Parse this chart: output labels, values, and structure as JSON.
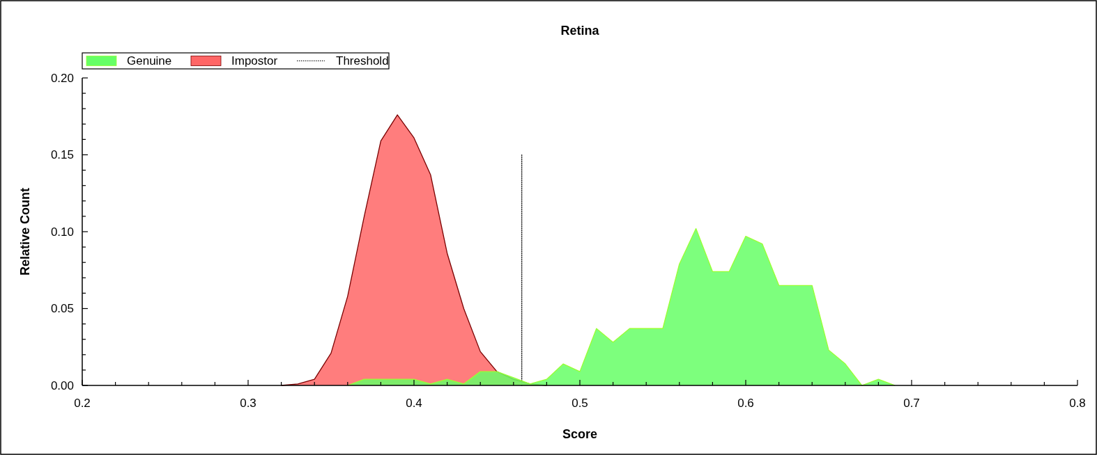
{
  "chart_data": {
    "type": "area",
    "title": "Retina",
    "xlabel": "Score",
    "ylabel": "Relative Count",
    "xlim": [
      0.2,
      0.8
    ],
    "xticks": [
      0.2,
      {
        "value": 0.22,
        "label": null
      },
      {
        "value": 0.24,
        "label": null
      },
      {
        "value": 0.26,
        "label": null
      },
      {
        "value": 0.28,
        "label": null
      },
      0.3,
      {
        "value": 0.32,
        "label": null
      },
      {
        "value": 0.34,
        "label": null
      },
      {
        "value": 0.36,
        "label": null
      },
      {
        "value": 0.38,
        "label": null
      },
      0.4,
      {
        "value": 0.42,
        "label": null
      },
      {
        "value": 0.44,
        "label": null
      },
      {
        "value": 0.46,
        "label": null
      },
      {
        "value": 0.48,
        "label": null
      },
      0.5,
      {
        "value": 0.52,
        "label": null
      },
      {
        "value": 0.54,
        "label": null
      },
      {
        "value": 0.56,
        "label": null
      },
      {
        "value": 0.58,
        "label": null
      },
      0.6,
      {
        "value": 0.62,
        "label": null
      },
      {
        "value": 0.64,
        "label": null
      },
      {
        "value": 0.66,
        "label": null
      },
      {
        "value": 0.68,
        "label": null
      },
      0.7,
      {
        "value": 0.72,
        "label": null
      },
      {
        "value": 0.74,
        "label": null
      },
      {
        "value": 0.76,
        "label": null
      },
      {
        "value": 0.78,
        "label": null
      },
      0.8
    ],
    "ylim": [
      0,
      0.2
    ],
    "yticks": [
      {
        "value": 0,
        "label": "0.00"
      },
      {
        "value": 0.01,
        "label": null
      },
      {
        "value": 0.02,
        "label": null
      },
      {
        "value": 0.03,
        "label": null
      },
      {
        "value": 0.04,
        "label": null
      },
      {
        "value": 0.05,
        "label": "0.05"
      },
      {
        "value": 0.06,
        "label": null
      },
      {
        "value": 0.07,
        "label": null
      },
      {
        "value": 0.08,
        "label": null
      },
      {
        "value": 0.09,
        "label": null
      },
      {
        "value": 0.1,
        "label": "0.10"
      },
      {
        "value": 0.11,
        "label": null
      },
      {
        "value": 0.12,
        "label": null
      },
      {
        "value": 0.13,
        "label": null
      },
      {
        "value": 0.14,
        "label": null
      },
      {
        "value": 0.15,
        "label": "0.15"
      },
      {
        "value": 0.16,
        "label": null
      },
      {
        "value": 0.17,
        "label": null
      },
      {
        "value": 0.18,
        "label": null
      },
      {
        "value": 0.19,
        "label": null
      },
      {
        "value": 0.2,
        "label": "0.20"
      }
    ],
    "grid": false,
    "legend": "top left",
    "marker": "none",
    "series": [
      {
        "name": "Genuine",
        "color": "#66ff66",
        "x": [
          0.36,
          0.37,
          0.38,
          0.39,
          0.4,
          0.41,
          0.42,
          0.43,
          0.44,
          0.45,
          0.46,
          0.47,
          0.48,
          0.49,
          0.5,
          0.51,
          0.52,
          0.53,
          0.54,
          0.55,
          0.56,
          0.57,
          0.58,
          0.59,
          0.6,
          0.61,
          0.62,
          0.63,
          0.64,
          0.65,
          0.66,
          0.67,
          0.68,
          0.69
        ],
        "values": [
          0,
          0.004,
          0.004,
          0.004,
          0.004,
          0.001,
          0.004,
          0.001,
          0.009,
          0.009,
          0.005,
          0.001,
          0.004,
          0.014,
          0.009,
          0.037,
          0.028,
          0.037,
          0.037,
          0.037,
          0.079,
          0.102,
          0.074,
          0.074,
          0.097,
          0.092,
          0.065,
          0.065,
          0.065,
          0.023,
          0.014,
          0,
          0.004,
          0
        ]
      },
      {
        "name": "Impostor",
        "color": "#ff6666",
        "x": [
          0.32,
          0.33,
          0.34,
          0.35,
          0.36,
          0.37,
          0.38,
          0.39,
          0.4,
          0.41,
          0.42,
          0.43,
          0.44,
          0.45,
          0.46,
          0.47,
          0.48
        ],
        "values": [
          0,
          0.001,
          0.004,
          0.021,
          0.058,
          0.11,
          0.159,
          0.176,
          0.161,
          0.137,
          0.086,
          0.05,
          0.022,
          0.009,
          0.004,
          0.001,
          0
        ]
      },
      {
        "name": "Threshold",
        "type": "line",
        "color": "#000000",
        "line_style": "dotted",
        "x": [
          0.465,
          0.465
        ],
        "values": [
          0,
          0.15
        ]
      }
    ]
  }
}
